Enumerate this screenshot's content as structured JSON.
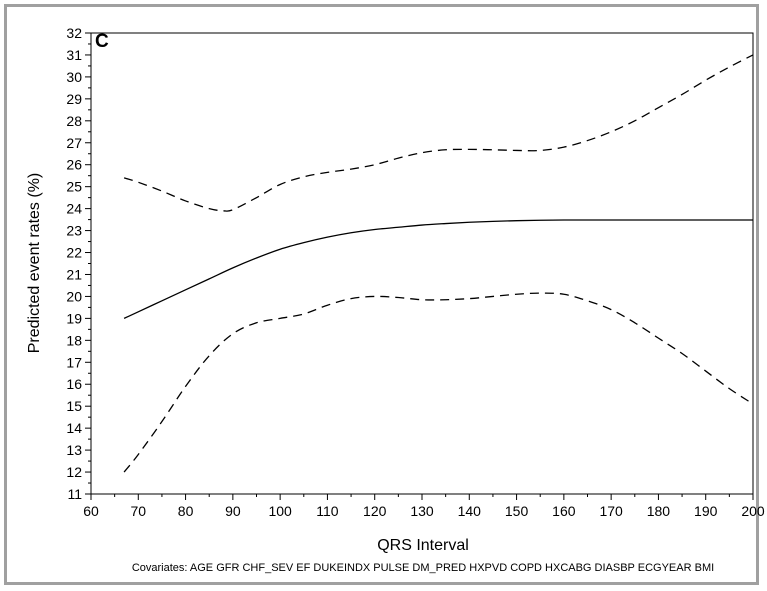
{
  "chart_data": {
    "type": "line",
    "panel_label": "C",
    "title": "",
    "xlabel": "QRS Interval",
    "ylabel": "Predicted event rates (%)",
    "footnote": "Covariates: AGE GFR CHF_SEV EF DUKEINDX PULSE DM_PRED HXPVD COPD HXCABG DIASBP ECGYEAR BMI",
    "xlim": [
      60,
      200
    ],
    "ylim": [
      11,
      32
    ],
    "xticks": [
      60,
      70,
      80,
      90,
      100,
      110,
      120,
      130,
      140,
      150,
      160,
      170,
      180,
      190,
      200
    ],
    "yticks": [
      11,
      12,
      13,
      14,
      15,
      16,
      17,
      18,
      19,
      20,
      21,
      22,
      23,
      24,
      25,
      26,
      27,
      28,
      29,
      30,
      31,
      32
    ],
    "grid": false,
    "legend": "none",
    "series": [
      {
        "style": "solid",
        "color": "#000000",
        "x": [
          67,
          70,
          75,
          80,
          85,
          90,
          95,
          100,
          105,
          110,
          115,
          120,
          125,
          130,
          135,
          140,
          145,
          150,
          155,
          160,
          165,
          170,
          175,
          180,
          185,
          190,
          195,
          200
        ],
        "y": [
          19.0,
          19.3,
          19.8,
          20.3,
          20.8,
          21.3,
          21.75,
          22.15,
          22.45,
          22.7,
          22.9,
          23.05,
          23.15,
          23.25,
          23.32,
          23.38,
          23.42,
          23.45,
          23.47,
          23.48,
          23.48,
          23.48,
          23.48,
          23.48,
          23.48,
          23.48,
          23.48,
          23.48
        ]
      },
      {
        "style": "dashed",
        "color": "#000000",
        "x": [
          67,
          70,
          75,
          80,
          85,
          88,
          90,
          95,
          100,
          105,
          110,
          115,
          120,
          125,
          130,
          135,
          140,
          145,
          150,
          155,
          160,
          165,
          170,
          175,
          180,
          185,
          190,
          195,
          200
        ],
        "y": [
          25.4,
          25.2,
          24.8,
          24.35,
          24.0,
          23.9,
          23.95,
          24.5,
          25.1,
          25.45,
          25.65,
          25.8,
          26.0,
          26.3,
          26.55,
          26.68,
          26.7,
          26.68,
          26.65,
          26.65,
          26.8,
          27.1,
          27.5,
          28.0,
          28.6,
          29.2,
          29.85,
          30.45,
          31.0
        ]
      },
      {
        "style": "dashed",
        "color": "#000000",
        "x": [
          67,
          70,
          75,
          80,
          85,
          90,
          95,
          100,
          105,
          110,
          115,
          120,
          125,
          130,
          135,
          140,
          145,
          150,
          155,
          160,
          165,
          170,
          175,
          180,
          185,
          190,
          195,
          200
        ],
        "y": [
          12.0,
          12.8,
          14.3,
          15.9,
          17.3,
          18.3,
          18.8,
          19.0,
          19.2,
          19.6,
          19.9,
          20.0,
          19.95,
          19.85,
          19.85,
          19.9,
          20.0,
          20.1,
          20.15,
          20.1,
          19.8,
          19.4,
          18.8,
          18.1,
          17.4,
          16.6,
          15.8,
          15.1
        ]
      }
    ]
  }
}
